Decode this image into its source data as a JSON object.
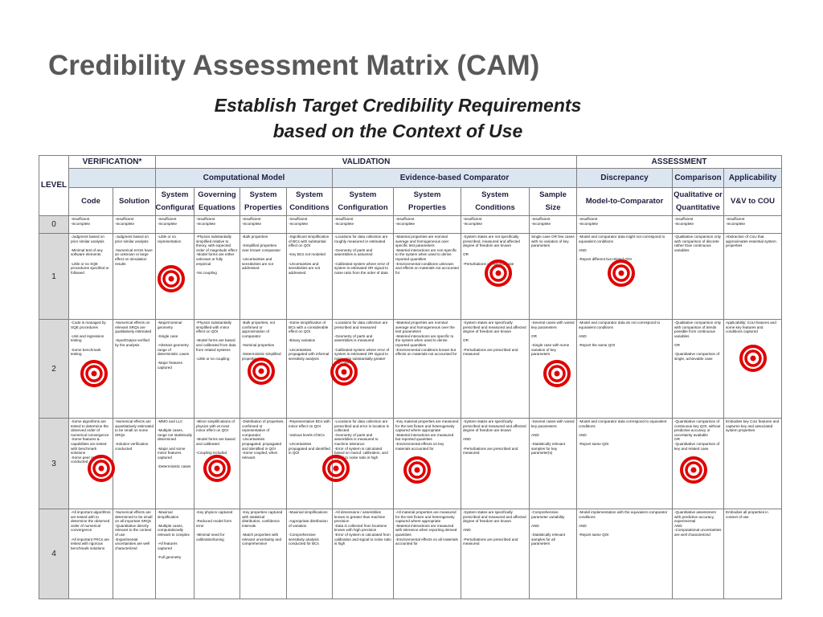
{
  "header": {
    "title": "Credibility Assessment Matrix (CAM)",
    "subtitle": [
      "Establish Target Credibility Requirements",
      "based on the Context of Use"
    ]
  },
  "table": {
    "groups": {
      "level": "LEVEL",
      "verification": "VERIFICATION*",
      "validation": "VALIDATION",
      "assessment": "ASSESSMENT",
      "computational_model": "Computational Model",
      "evidence": "Evidence-based Comparator",
      "discrepancy": "Discrepancy",
      "comparison": "Comparison",
      "applicability": "Applicability"
    },
    "columns": [
      "Code",
      "Solution",
      "System\nConfigurat",
      "Governing\nEquations",
      "System\nProperties",
      "System\nConditions",
      "System\nConfiguration",
      "System\nProperties",
      "System\nConditions",
      "Sample\nSize",
      "Model-to-Comparator",
      "Qualitative or\nQuantitative",
      "V&V to COU"
    ],
    "levels": [
      "0",
      "1",
      "2",
      "3",
      "4"
    ],
    "rows": [
      [
        "-Insufficient\n-Incomplete",
        "-Insufficient\n-Incomplete",
        "-Insufficient\n-Incomplete",
        "-Insufficient\n-Incomplete",
        "-Insufficient\n-Incomplete",
        "-Insufficient\n-Incomplete",
        "-Insufficient\n-Incomplete",
        "-Insufficient\n-Incomplete",
        "-Insufficient\n-Incomplete",
        "-Insufficient\n-Incomplete",
        "-Insufficient\n-Incomplete",
        "-Insufficient\n-Incomplete",
        "-Insufficient\n-Incomplete"
      ],
      [
        "-Judgment based on prior similar analysis\n\n-Minimal test of any software elements\n\n-Little or no SQE procedures specified or followed",
        "-Judgment based on prior similar analysis\n\n-Numerical errors have an unknown or large effect on simulation results",
        "-Little or no representation",
        "-Physics substantially simplified relative to theory, with expected order of magnitude effect\n-Model forms are either unknown or fully empirical\n\n-No coupling",
        "-Bulk properties\n\n-Simplified properties over known comparator\n\n-Uncertainties and sensitivities are not addressed",
        "-Significant simplification of BCs with substantial effect on QOI\n\n-Key BCs not modeled\n\n-Uncertainties and sensitivities are not addressed",
        "-Locations for data collection are roughly measured or estimated\n\n-Geometry of parts and assemblies is assumed\n\n-Calibrated system where error of system is estimated OR signal to noise ratio from the order of data",
        "-Material properties are nominal average and homogeneous over specific test parameters\n-Material interactions are non-specific to the system when used to derive reported quantities\n-Environmental conditions unknown and effects on materials not accounted for",
        "-System states are not specifically prescribed, measured and affected degree of freedom are known\n\nOR\n\n-Perturbations are approximate",
        "Single case OR few cases with no variation of key parameters",
        "-Model and comparator data might not correspond to equivalent conditions\n\nAND\n\n-Report different but related QOI",
        "-Qualitative comparison only with comparison of discrete rather than continuous variables",
        "Abstraction of CoU that approximates essential system properties"
      ],
      [
        "-Code is managed by SQE procedures\n\n-Unit and regression testing\n\n-Some benchmark testing",
        "-Numerical effects on relevant SRQs are qualitatively estimated\n\n-Input/Output verified by the analysis",
        "-Major/nominal geometry\n\n-Single case\n\n-Abstract geometry range of deterministic cases\n\n-Major features captured",
        "-Physics substantially simplified with minor effect on QOI\n\n-Model forms are based and calibrated from data from related systems\n\n-Little or no coupling",
        "-Bulk properties, not confirmed or approximation of comparator\n\n-Nominal properties\n\n-Deterministic simplified properties",
        "-Some simplification of BCs with a considerable effect on QOI\n\n-Binary variation\n\n-Uncertainties propagated with informal sensitivity analysis",
        "-Locations for data collection are prescribed and measured\n\n-Geometry of parts and assemblies is measured\n\n-Calibrated system where error of system is estimated OR signal to noise ratio substantially greater than one",
        "-Material properties are nominal average and homogeneous over the test parameters\n-Material interactions are specific to the system when used to derive reported quantities\n-Environmental conditions known but effects on materials not accounted for",
        "-System states are specifically prescribed and measured and affected degree of freedom are known\n\nOR\n\n-Perturbations are prescribed and measured",
        "-Several cases with varied key parameters\n\nOR\n\n-Single case with some variation of key parameters",
        "-Model and comparator data do not correspond to equivalent conditions\n\nAND\n\n-Report the same QOI",
        "-Qualitative comparison only with comparison of trends possible from continuous variables\n\nOR\n\n-Quantitative comparison of single, achievable case",
        "Applicability: CoU features and some key features and conditions captured"
      ],
      [
        "-Some algorithms are tested to determine the observed order of numerical convergence\n-Some features & capabilities are tested with benchmark solutions\n-Some peer review conducted",
        "-Numerical effects are quantitatively estimated to be small on some SRQs\n\n-Solution verification conducted",
        "-MMO and LLC\n\n-Multiple cases, range not statistically determined\n\n-Major and some minor features captured\n\n-Deterministic cases",
        "-Minor simplifications of physics with at most minor effect on QOI\n\n-Model forms are based and calibrated\n\n-Coupling included",
        "-Distribution of properties, confirmed or representative of comparator\n-Uncertainties propagated, propagated and identified in QOI\n-Some coupled, when relevant",
        "-Representative BCs with minor effect on QOI\n\n-Various levels of BCs\n\n-Uncertainties propagated and identified in QOI",
        "-Locations for data collection are prescribed and error in location is collected\n-Geometry of parts and assemblies is measured to machine tolerance\n-Error of system is calculated based on manuf. calibration, and signal to noise ratio is high",
        "-Key material properties are measured for the test fixture and heterogeneity captured where appropriate\n-Material interactions are measured but reported quantities\n-Environmental effects on key materials accounted for",
        "-System states are specifically prescribed and measured and affected degree of freedom are known\n\nAND\n\n-Perturbations are prescribed and measured",
        "-Several cases with varied key parameters\n\nAND\n\n-Statistically relevant samples for key parameter(s)",
        "-Model and comparator data correspond to equivalent conditions\n\nAND\n\n-Report same QOI",
        "-Quantitative comparison of continuous key QOI, without predictive accuracy or uncertainty available\nOR\n-Quantitative comparison of key and related case",
        "Embodies key CoU features and captures key and associated system properties"
      ],
      [
        "-All important algorithms are tested with to determine the observed order of numerical convergence\n\n-All important FRCs are tested with rigorous benchmark solutions",
        "-Numerical effects are determined to be small on all important SRQs\n-Quantitative directly relevant to the context of use\n-Experimental uncertainties are well characterized",
        "-Maximal simplification\n\n-Multiple cases, computationally relevant to complex\n\n-All features captured\n\n-Full geometry",
        "-Key physics captured\n\n-Reduced model form error\n\n-Minimal need for calibration/tuning",
        "-Key properties captured with statistical distribution, confidence intervals\n\n-Match properties with relevant uncertainty and comprehensive",
        "-Maximal simplifications\n\n-Appropriate distribution of variation\n\n-Comprehensive sensitivity analysis conducted for BCs",
        "-All dimensions / assemblies known to greater than machine precision\n-Data is collected from locations known with high precision\n-Error of system is calculated from calibration and signal to noise ratio is high",
        "-All material properties are measured for the test fixture and heterogeneity captured where appropriate\n-Material interactions are measured with tolerance when reporting derived quantities\n-Environmental effects on all materials accounted for",
        "-System states are specifically prescribed and measured and affected degree of freedom are known\n\nAND\n\n-Perturbations are prescribed and measured",
        "-Comprehensive parameter variability\n\nAND\n\n-Statistically relevant samples for all parameters",
        "-Model implementation with the equivalent comparator conditions\n\nAND\n\n-Report same QOI",
        "-Quantitative assessment with predictive accuracy, experimental\nAND\n-Computational uncertainties are well characterized",
        "Embodies all properties in context of use"
      ]
    ]
  }
}
